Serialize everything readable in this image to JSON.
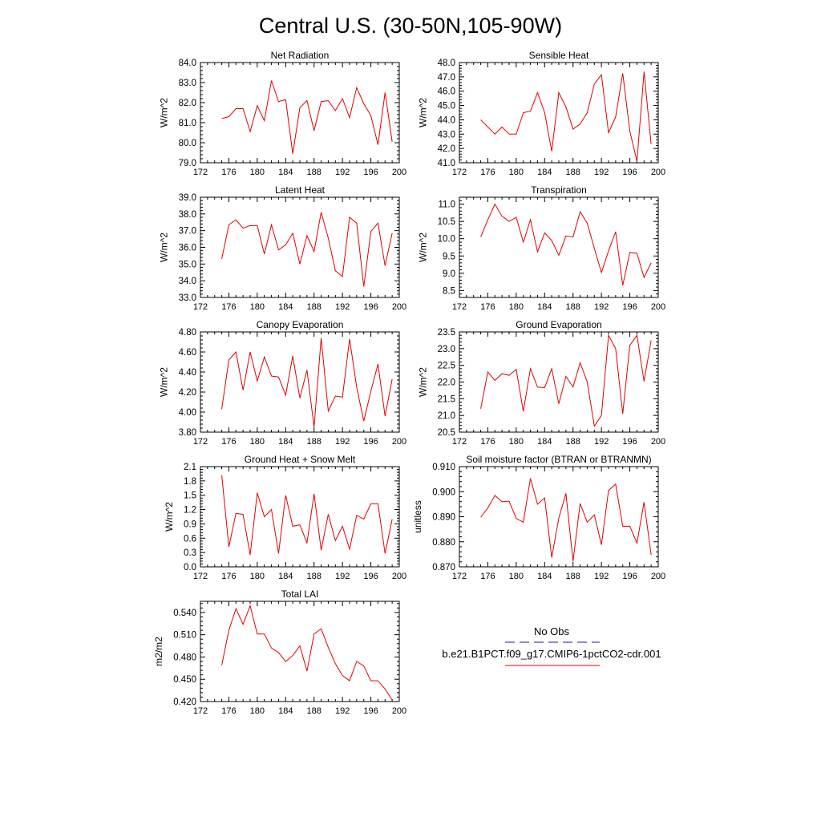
{
  "figure": {
    "title": "Central U.S. (30-50N,105-90W)"
  },
  "legend": {
    "entries": [
      {
        "label": "No Obs",
        "color": "#1a1aa0",
        "dashed": true
      },
      {
        "label": "b.e21.B1PCT.f09_g17.CMIP6-1pctCO2-cdr.001",
        "color": "#e00000",
        "dashed": false
      }
    ]
  },
  "chart_data": [
    {
      "type": "line",
      "title": "Net Radiation",
      "ylabel": "W/m^2",
      "xlim": [
        172,
        200
      ],
      "xticks": [
        172,
        176,
        180,
        184,
        188,
        192,
        196,
        200
      ],
      "ylim": [
        79.0,
        84.0
      ],
      "yticks": [
        "79.0",
        "80.0",
        "81.0",
        "82.0",
        "83.0",
        "84.0"
      ],
      "x": [
        175,
        176,
        177,
        178,
        179,
        180,
        181,
        182,
        183,
        184,
        185,
        186,
        187,
        188,
        189,
        190,
        191,
        192,
        193,
        194,
        195,
        196,
        197,
        198,
        199
      ],
      "series": [
        {
          "color": "#e00000",
          "values": [
            81.2,
            81.3,
            81.7,
            81.7,
            80.55,
            81.85,
            81.1,
            83.1,
            82.05,
            82.15,
            79.45,
            81.75,
            82.1,
            80.6,
            82.05,
            82.1,
            81.6,
            82.2,
            81.25,
            82.75,
            81.95,
            81.35,
            79.9,
            82.5,
            80.05
          ]
        }
      ]
    },
    {
      "type": "line",
      "title": "Sensible Heat",
      "ylabel": "W/m^2",
      "xlim": [
        172,
        200
      ],
      "xticks": [
        172,
        176,
        180,
        184,
        188,
        192,
        196,
        200
      ],
      "ylim": [
        41.0,
        48.0
      ],
      "yticks": [
        "41.0",
        "42.0",
        "43.0",
        "44.0",
        "45.0",
        "46.0",
        "47.0",
        "48.0"
      ],
      "x": [
        175,
        176,
        177,
        178,
        179,
        180,
        181,
        182,
        183,
        184,
        185,
        186,
        187,
        188,
        189,
        190,
        191,
        192,
        193,
        194,
        195,
        196,
        197,
        198,
        199
      ],
      "series": [
        {
          "color": "#e00000",
          "values": [
            44.0,
            43.5,
            43.0,
            43.5,
            43.0,
            43.0,
            44.5,
            44.6,
            45.9,
            44.5,
            41.8,
            45.9,
            44.9,
            43.35,
            43.7,
            44.5,
            46.5,
            47.15,
            43.1,
            44.2,
            47.25,
            43.2,
            41.1,
            47.35,
            42.3
          ]
        }
      ]
    },
    {
      "type": "line",
      "title": "Latent Heat",
      "ylabel": "W/m^2",
      "xlim": [
        172,
        200
      ],
      "xticks": [
        172,
        176,
        180,
        184,
        188,
        192,
        196,
        200
      ],
      "ylim": [
        33.0,
        39.0
      ],
      "yticks": [
        "33.0",
        "34.0",
        "35.0",
        "36.0",
        "37.0",
        "38.0",
        "39.0"
      ],
      "x": [
        175,
        176,
        177,
        178,
        179,
        180,
        181,
        182,
        183,
        184,
        185,
        186,
        187,
        188,
        189,
        190,
        191,
        192,
        193,
        194,
        195,
        196,
        197,
        198,
        199
      ],
      "series": [
        {
          "color": "#e00000",
          "values": [
            35.3,
            37.35,
            37.65,
            37.15,
            37.3,
            37.3,
            35.6,
            37.35,
            35.85,
            36.15,
            36.85,
            35.0,
            36.7,
            35.75,
            38.1,
            36.55,
            34.6,
            34.25,
            37.8,
            37.45,
            33.65,
            36.95,
            37.45,
            34.9,
            36.85
          ]
        }
      ]
    },
    {
      "type": "line",
      "title": "Transpiration",
      "ylabel": "W/m^2",
      "xlim": [
        172,
        200
      ],
      "xticks": [
        172,
        176,
        180,
        184,
        188,
        192,
        196,
        200
      ],
      "ylim": [
        8.3,
        11.2
      ],
      "yticks": [
        "8.5",
        "9.0",
        "9.5",
        "10.0",
        "10.5",
        "11.0"
      ],
      "x": [
        175,
        176,
        177,
        178,
        179,
        180,
        181,
        182,
        183,
        184,
        185,
        186,
        187,
        188,
        189,
        190,
        191,
        192,
        193,
        194,
        195,
        196,
        197,
        198,
        199
      ],
      "series": [
        {
          "color": "#e00000",
          "values": [
            10.05,
            10.55,
            11.0,
            10.65,
            10.5,
            10.62,
            9.9,
            10.55,
            9.62,
            10.17,
            9.95,
            9.52,
            10.08,
            10.05,
            10.78,
            10.45,
            9.72,
            9.02,
            9.65,
            10.2,
            8.65,
            9.6,
            9.58,
            8.88,
            9.3
          ]
        }
      ]
    },
    {
      "type": "line",
      "title": "Canopy Evaporation",
      "ylabel": "W/m^2",
      "xlim": [
        172,
        200
      ],
      "xticks": [
        172,
        176,
        180,
        184,
        188,
        192,
        196,
        200
      ],
      "ylim": [
        3.8,
        4.8
      ],
      "yticks": [
        "3.80",
        "4.00",
        "4.20",
        "4.40",
        "4.60",
        "4.80"
      ],
      "x": [
        175,
        176,
        177,
        178,
        179,
        180,
        181,
        182,
        183,
        184,
        185,
        186,
        187,
        188,
        189,
        190,
        191,
        192,
        193,
        194,
        195,
        196,
        197,
        198,
        199
      ],
      "series": [
        {
          "color": "#e00000",
          "values": [
            4.03,
            4.52,
            4.6,
            4.22,
            4.6,
            4.31,
            4.55,
            4.36,
            4.35,
            4.17,
            4.56,
            4.14,
            4.42,
            3.85,
            4.74,
            4.01,
            4.16,
            4.15,
            4.73,
            4.25,
            3.91,
            4.21,
            4.48,
            3.96,
            4.33
          ]
        }
      ]
    },
    {
      "type": "line",
      "title": "Ground Evaporation",
      "ylabel": "W/m^2",
      "xlim": [
        172,
        200
      ],
      "xticks": [
        172,
        176,
        180,
        184,
        188,
        192,
        196,
        200
      ],
      "ylim": [
        20.5,
        23.5
      ],
      "yticks": [
        "20.5",
        "21.0",
        "21.5",
        "22.0",
        "22.5",
        "23.0",
        "23.5"
      ],
      "x": [
        175,
        176,
        177,
        178,
        179,
        180,
        181,
        182,
        183,
        184,
        185,
        186,
        187,
        188,
        189,
        190,
        191,
        192,
        193,
        194,
        195,
        196,
        197,
        198,
        199
      ],
      "series": [
        {
          "color": "#e00000",
          "values": [
            21.2,
            22.3,
            22.05,
            22.25,
            22.2,
            22.38,
            21.12,
            22.4,
            21.85,
            21.83,
            22.4,
            21.35,
            22.17,
            21.85,
            22.58,
            22.0,
            20.68,
            21.0,
            23.4,
            23.0,
            21.05,
            23.1,
            23.4,
            22.02,
            23.25
          ]
        }
      ]
    },
    {
      "type": "line",
      "title": "Ground Heat + Snow Melt",
      "ylabel": "W/m^2",
      "xlim": [
        172,
        200
      ],
      "xticks": [
        172,
        176,
        180,
        184,
        188,
        192,
        196,
        200
      ],
      "ylim": [
        0.0,
        2.1
      ],
      "yticks": [
        "0.0",
        "0.3",
        "0.6",
        "0.9",
        "1.2",
        "1.5",
        "1.8",
        "2.1"
      ],
      "x": [
        175,
        176,
        177,
        178,
        179,
        180,
        181,
        182,
        183,
        184,
        185,
        186,
        187,
        188,
        189,
        190,
        191,
        192,
        193,
        194,
        195,
        196,
        197,
        198,
        199
      ],
      "series": [
        {
          "color": "#e00000",
          "values": [
            1.92,
            0.42,
            1.12,
            1.1,
            0.25,
            1.55,
            1.05,
            1.2,
            0.28,
            1.5,
            0.85,
            0.88,
            0.5,
            1.53,
            0.35,
            1.1,
            0.55,
            0.85,
            0.37,
            1.08,
            1.0,
            1.32,
            1.32,
            0.28,
            1.0
          ]
        }
      ]
    },
    {
      "type": "line",
      "title": "Soil moisture factor (BTRAN or BTRANMN)",
      "ylabel": "unitless",
      "xlim": [
        172,
        200
      ],
      "xticks": [
        172,
        176,
        180,
        184,
        188,
        192,
        196,
        200
      ],
      "ylim": [
        0.87,
        0.91
      ],
      "yticks": [
        "0.870",
        "0.880",
        "0.890",
        "0.900",
        "0.910"
      ],
      "x": [
        175,
        176,
        177,
        178,
        179,
        180,
        181,
        182,
        183,
        184,
        185,
        186,
        187,
        188,
        189,
        190,
        191,
        192,
        193,
        194,
        195,
        196,
        197,
        198,
        199
      ],
      "series": [
        {
          "color": "#e00000",
          "values": [
            0.8898,
            0.8935,
            0.8985,
            0.896,
            0.8962,
            0.8893,
            0.8878,
            0.9053,
            0.895,
            0.8975,
            0.8737,
            0.8895,
            0.8993,
            0.8722,
            0.8953,
            0.8878,
            0.8907,
            0.8788,
            0.9005,
            0.903,
            0.8862,
            0.8862,
            0.8795,
            0.8958,
            0.8748
          ]
        }
      ]
    },
    {
      "type": "line",
      "title": "Total LAI",
      "ylabel": "m2/m2",
      "xlim": [
        172,
        200
      ],
      "xticks": [
        172,
        176,
        180,
        184,
        188,
        192,
        196,
        200
      ],
      "ylim": [
        0.42,
        0.555
      ],
      "yticks": [
        "0.420",
        "0.450",
        "0.480",
        "0.510",
        "0.540"
      ],
      "x": [
        175,
        176,
        177,
        178,
        179,
        180,
        181,
        182,
        183,
        184,
        185,
        186,
        187,
        188,
        189,
        190,
        191,
        192,
        193,
        194,
        195,
        196,
        197,
        198,
        199
      ],
      "series": [
        {
          "color": "#e00000",
          "values": [
            0.469,
            0.516,
            0.545,
            0.524,
            0.549,
            0.511,
            0.511,
            0.492,
            0.486,
            0.474,
            0.482,
            0.495,
            0.461,
            0.511,
            0.518,
            0.493,
            0.471,
            0.455,
            0.448,
            0.474,
            0.468,
            0.448,
            0.448,
            0.437,
            0.422
          ]
        }
      ]
    }
  ]
}
